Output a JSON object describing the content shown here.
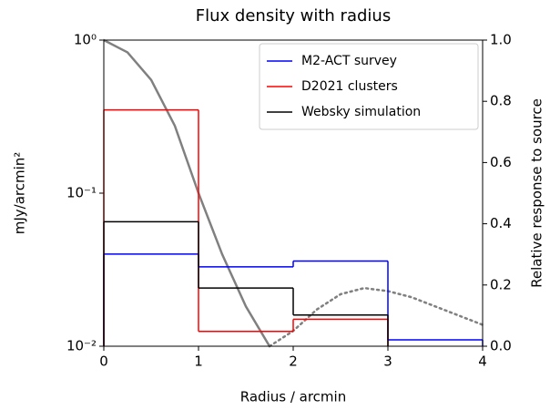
{
  "chart_data": {
    "type": "step",
    "title": "Flux density with radius",
    "xlabel": "Radius / arcmin",
    "ylabel": "mJy/arcmin²",
    "y2label": "Relative response to source",
    "xlim": [
      0,
      4
    ],
    "xticks": [
      0,
      1,
      2,
      3,
      4
    ],
    "ylim": [
      0.01,
      1
    ],
    "yscale": "log",
    "yticks": [
      {
        "value": 0.01,
        "label": "10⁻²"
      },
      {
        "value": 0.1,
        "label": "10⁻¹"
      },
      {
        "value": 1,
        "label": "10⁰"
      }
    ],
    "y2lim": [
      0,
      1
    ],
    "y2ticks": [
      {
        "value": 0,
        "label": "0.0"
      },
      0.2,
      0.4,
      0.6,
      0.8,
      {
        "value": 1,
        "label": "1.0"
      }
    ],
    "legend": "upper right",
    "series": [
      {
        "name": "M2-ACT survey",
        "color": "#0000ff",
        "bins": [
          0,
          1,
          2,
          3,
          4
        ],
        "values": [
          0.04,
          0.033,
          0.036,
          0.011
        ]
      },
      {
        "name": "D2021 clusters",
        "color": "#ff0000",
        "bins": [
          0,
          1,
          2,
          3
        ],
        "values": [
          0.35,
          0.0125,
          0.015
        ]
      },
      {
        "name": "Websky simulation",
        "color": "#000000",
        "bins": [
          0,
          1,
          2,
          3
        ],
        "values": [
          0.065,
          0.024,
          0.016
        ]
      }
    ],
    "beam": [
      {
        "axis": "y2",
        "color": "#808080",
        "style": "solid",
        "x": [
          0,
          0.25,
          0.5,
          0.75,
          1,
          1.25,
          1.5,
          1.75
        ],
        "values": [
          1.0,
          0.96,
          0.87,
          0.72,
          0.5,
          0.3,
          0.13,
          0.0
        ]
      },
      {
        "axis": "y2",
        "color": "#808080",
        "style": "dotted",
        "x": [
          1.75,
          2,
          2.25,
          2.5,
          2.75,
          3,
          3.25,
          3.5,
          3.75,
          4
        ],
        "values": [
          0.0,
          0.05,
          0.12,
          0.17,
          0.19,
          0.18,
          0.16,
          0.13,
          0.1,
          0.07
        ]
      }
    ]
  }
}
